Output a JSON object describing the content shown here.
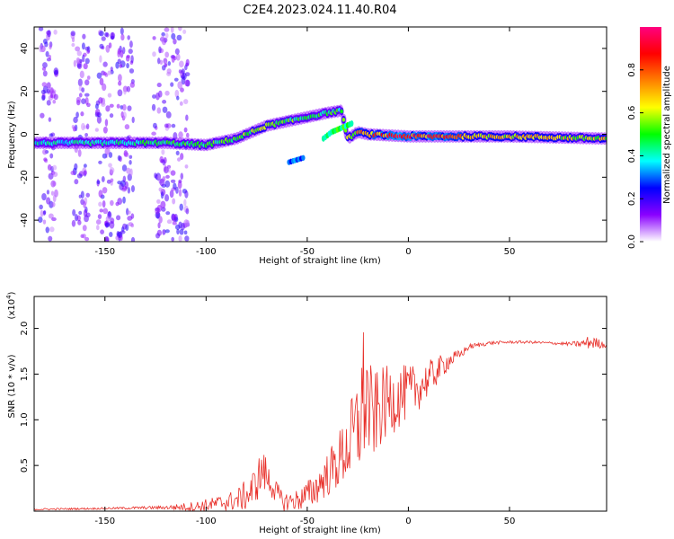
{
  "title": "C2E4.2023.024.11.40.R04",
  "chart_data": [
    {
      "type": "heatmap",
      "xlabel": "Height of straight line (km)",
      "ylabel": "Frequency (Hz)",
      "xlim": [
        -185,
        98
      ],
      "ylim": [
        -50,
        50
      ],
      "xticks": [
        -150,
        -100,
        -50,
        0,
        50
      ],
      "yticks": [
        -40,
        -20,
        0,
        20,
        40
      ],
      "grid": false,
      "colorbar": {
        "label": "Normalized spectral amplitude",
        "range": [
          0,
          1
        ],
        "ticks": [
          "0.0",
          "0.2",
          "0.4",
          "0.6",
          "0.8"
        ],
        "colormap": [
          "#ffffff",
          "#8a00ff",
          "#0000ff",
          "#00ffff",
          "#00ff00",
          "#ffff00",
          "#ff8000",
          "#ff0000",
          "#ff0080"
        ]
      },
      "ridge": {
        "x": [
          -185,
          -150,
          -120,
          -100,
          -85,
          -70,
          -60,
          -50,
          -40,
          -33,
          -30,
          -25,
          -20,
          0,
          20,
          50,
          98
        ],
        "y": [
          -4,
          -4,
          -4,
          -5,
          -2,
          4,
          6,
          8,
          10,
          11,
          -2,
          1,
          0,
          -1,
          -1,
          -1,
          -2
        ],
        "amplitude": [
          0.4,
          0.45,
          0.5,
          0.5,
          0.55,
          0.6,
          0.55,
          0.5,
          0.5,
          0.5,
          0.6,
          0.7,
          0.8,
          0.9,
          0.85,
          0.7,
          0.65
        ]
      },
      "branch": {
        "x": [
          -42,
          -38,
          -33,
          -28
        ],
        "y": [
          -2,
          1,
          3,
          5
        ]
      },
      "isolated_blob": {
        "x": [
          -59,
          -52
        ],
        "y": [
          -13,
          -11
        ]
      },
      "noise_columns_x": [
        -178,
        -162,
        -150,
        -140,
        -122,
        -113
      ]
    },
    {
      "type": "line",
      "xlabel": "Height of straight line (km)",
      "ylabel": "SNR (10 * v/v)",
      "y_multiplier": "(x10",
      "y_multiplier_exp": "4",
      "y_multiplier_close": ")",
      "xlim": [
        -185,
        98
      ],
      "ylim": [
        0,
        2.35
      ],
      "xticks": [
        -150,
        -100,
        -50,
        0,
        50
      ],
      "yticks": [
        0.5,
        1.0,
        1.5,
        2.0
      ],
      "ytick_labels": [
        "0.5",
        "1.0",
        "1.5",
        "2.0"
      ],
      "grid": false,
      "series": [
        {
          "color": "#e8302a",
          "x": [
            -185,
            -150,
            -120,
            -105,
            -95,
            -85,
            -78,
            -72,
            -68,
            -62,
            -55,
            -48,
            -42,
            -36,
            -30,
            -25,
            -22,
            -20,
            -18,
            -15,
            -10,
            -5,
            0,
            5,
            10,
            15,
            20,
            25,
            30,
            40,
            50,
            60,
            70,
            80,
            85,
            90,
            98
          ],
          "y": [
            0.02,
            0.03,
            0.04,
            0.05,
            0.08,
            0.12,
            0.2,
            0.45,
            0.3,
            0.1,
            0.12,
            0.2,
            0.35,
            0.5,
            0.7,
            0.9,
            1.3,
            1.2,
            1.0,
            1.1,
            1.2,
            1.25,
            1.3,
            1.35,
            1.45,
            1.55,
            1.65,
            1.7,
            1.8,
            1.84,
            1.85,
            1.85,
            1.84,
            1.83,
            1.83,
            1.85,
            1.82
          ],
          "noise": [
            0.01,
            0.01,
            0.02,
            0.06,
            0.08,
            0.12,
            0.2,
            0.25,
            0.15,
            0.1,
            0.12,
            0.18,
            0.22,
            0.3,
            0.4,
            0.6,
            0.8,
            0.7,
            0.5,
            0.45,
            0.4,
            0.35,
            0.3,
            0.25,
            0.2,
            0.15,
            0.1,
            0.06,
            0.03,
            0.02,
            0.015,
            0.015,
            0.015,
            0.02,
            0.04,
            0.08,
            0.03
          ]
        }
      ]
    }
  ]
}
